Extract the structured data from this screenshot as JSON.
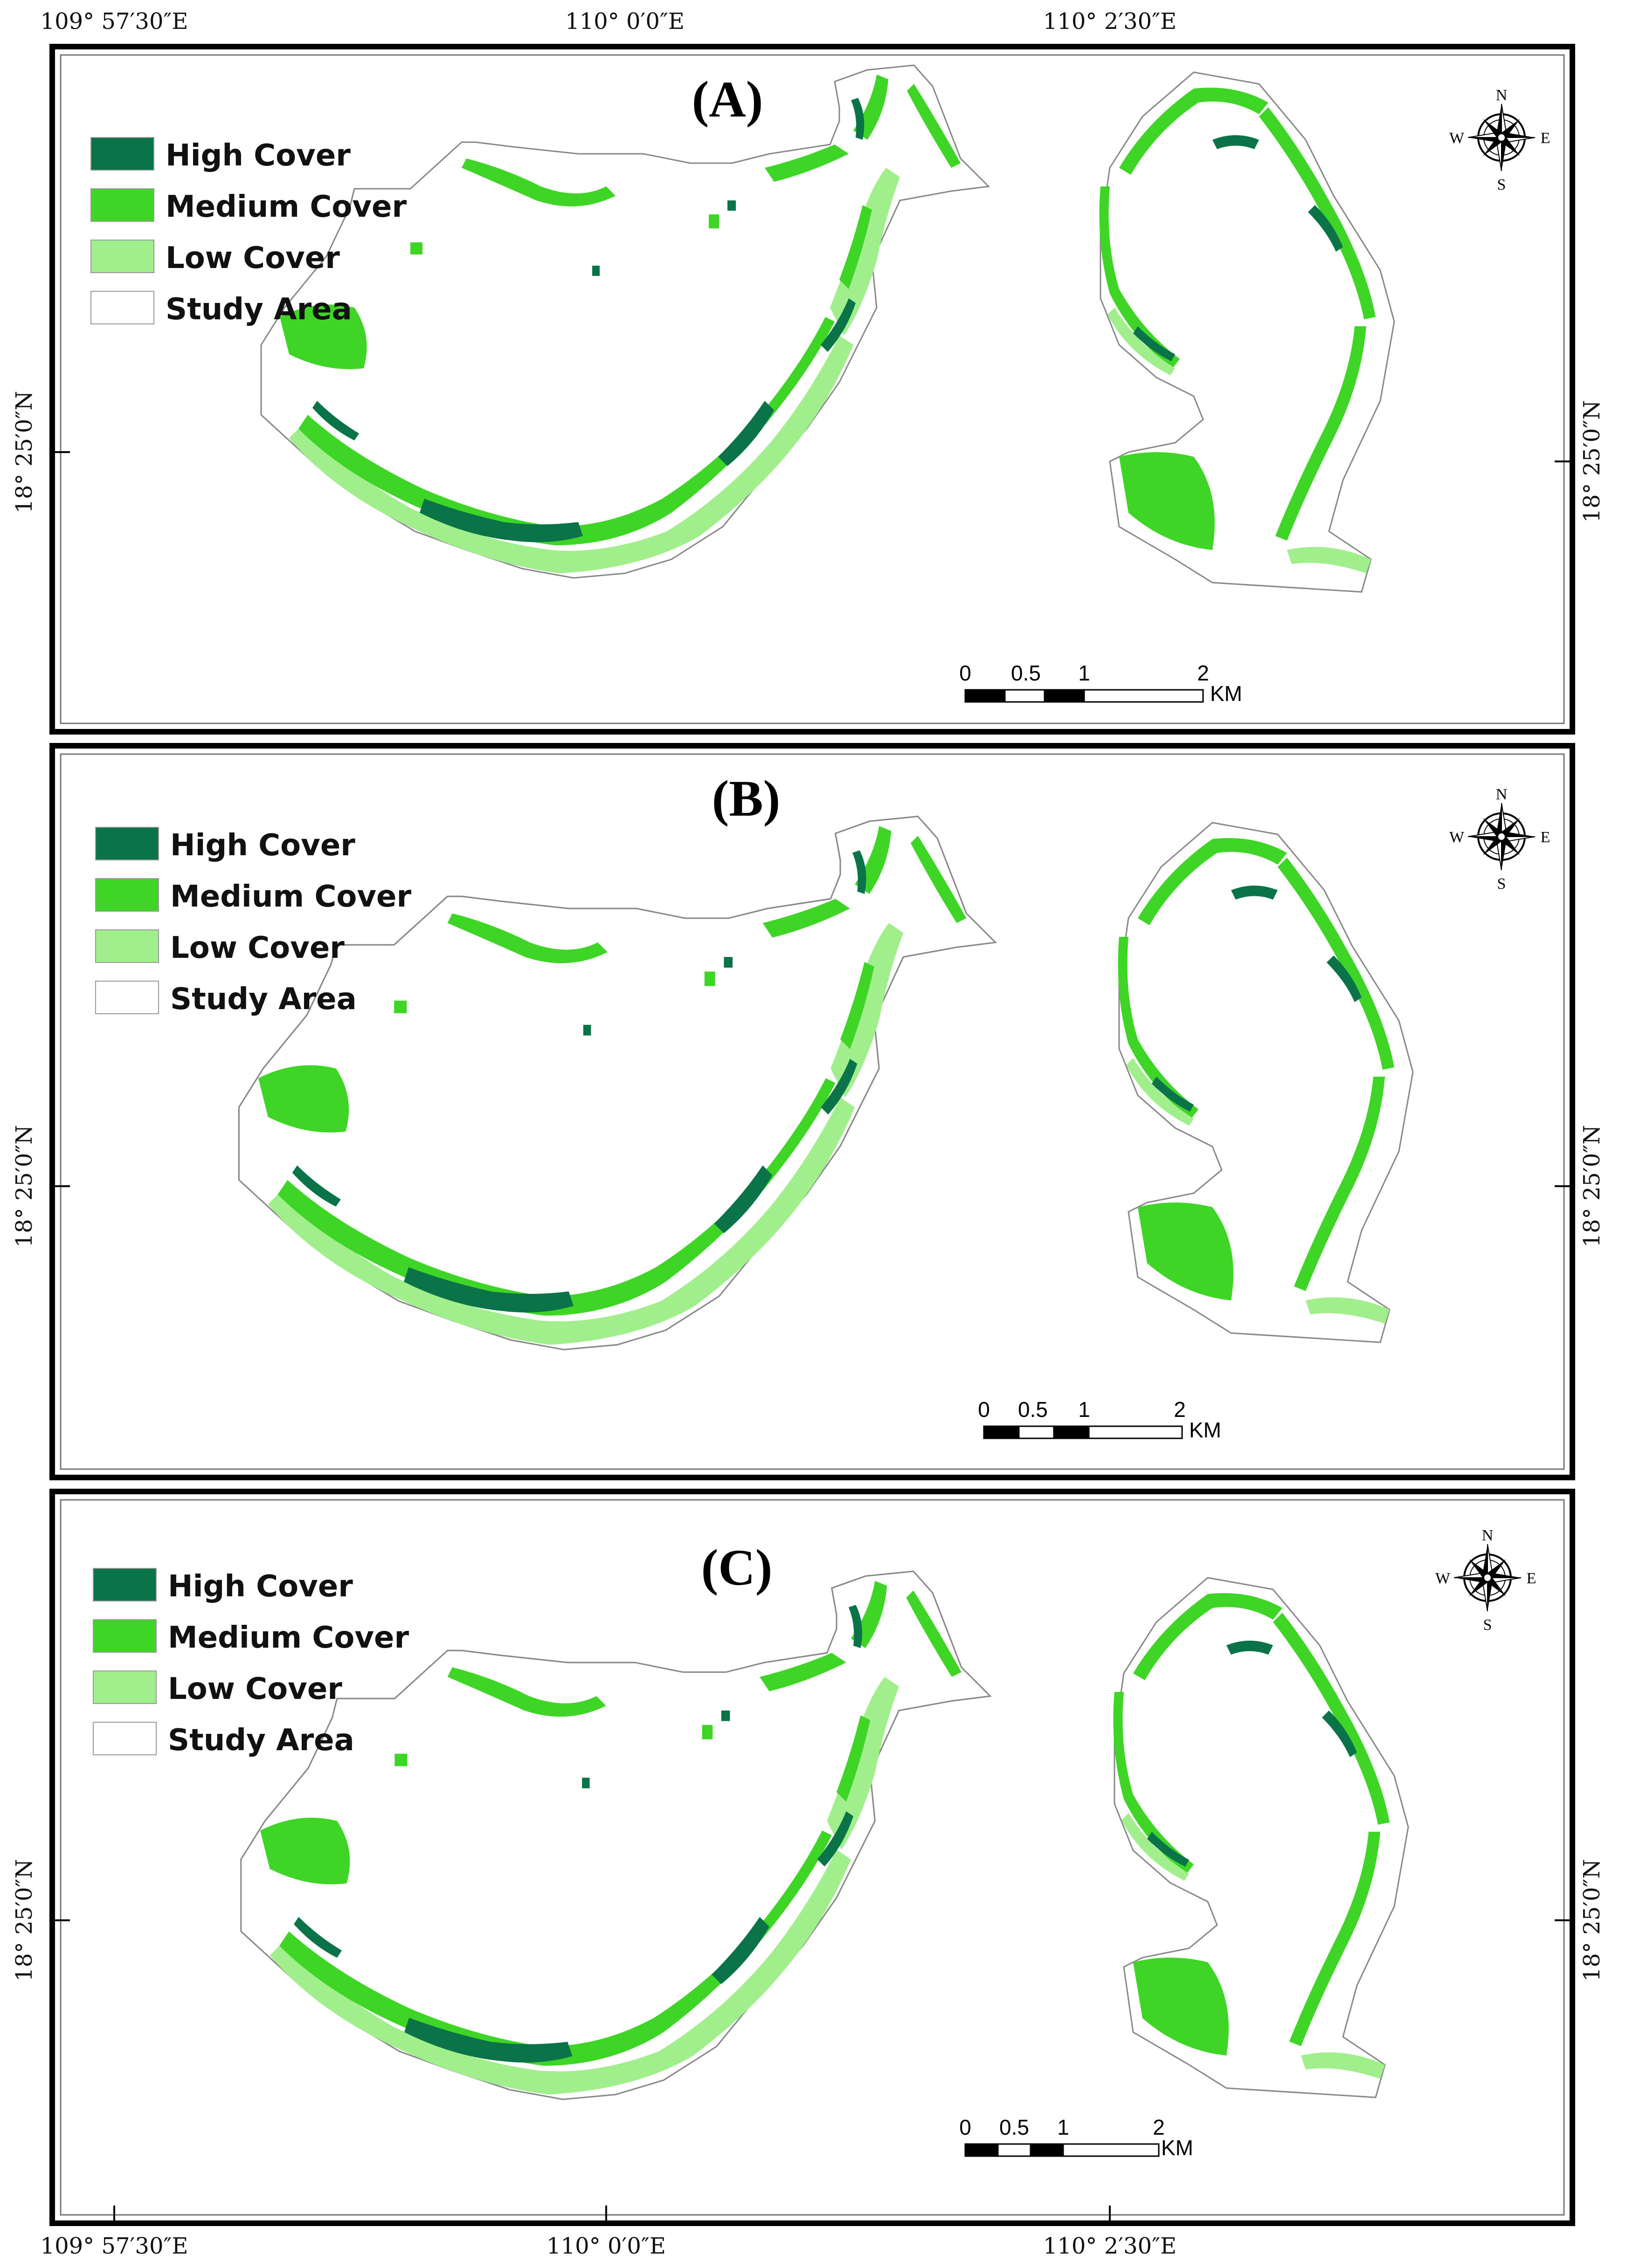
{
  "coordinates": {
    "top": [
      "109° 57′30″E",
      "110° 0′0″E",
      "110° 2′30″E"
    ],
    "bottom": [
      "109° 57′30″E",
      "110° 0′0″E",
      "110° 2′30″E"
    ],
    "left": "18° 25′0″N",
    "right": "18° 25′0″N"
  },
  "legend": [
    {
      "label": "High Cover",
      "color": "#0b7348"
    },
    {
      "label": "Medium Cover",
      "color": "#3fd526"
    },
    {
      "label": "Low Cover",
      "color": "#a1ee8c"
    },
    {
      "label": "Study Area",
      "color": "#ffffff"
    }
  ],
  "scale_bar": {
    "ticks": [
      "0",
      "0.5",
      "1",
      "2"
    ],
    "unit": "KM"
  },
  "compass": {
    "n": "N",
    "e": "E",
    "s": "S",
    "w": "W"
  },
  "panels": [
    {
      "title": "(A)"
    },
    {
      "title": "(B)"
    },
    {
      "title": "(C)"
    }
  ]
}
